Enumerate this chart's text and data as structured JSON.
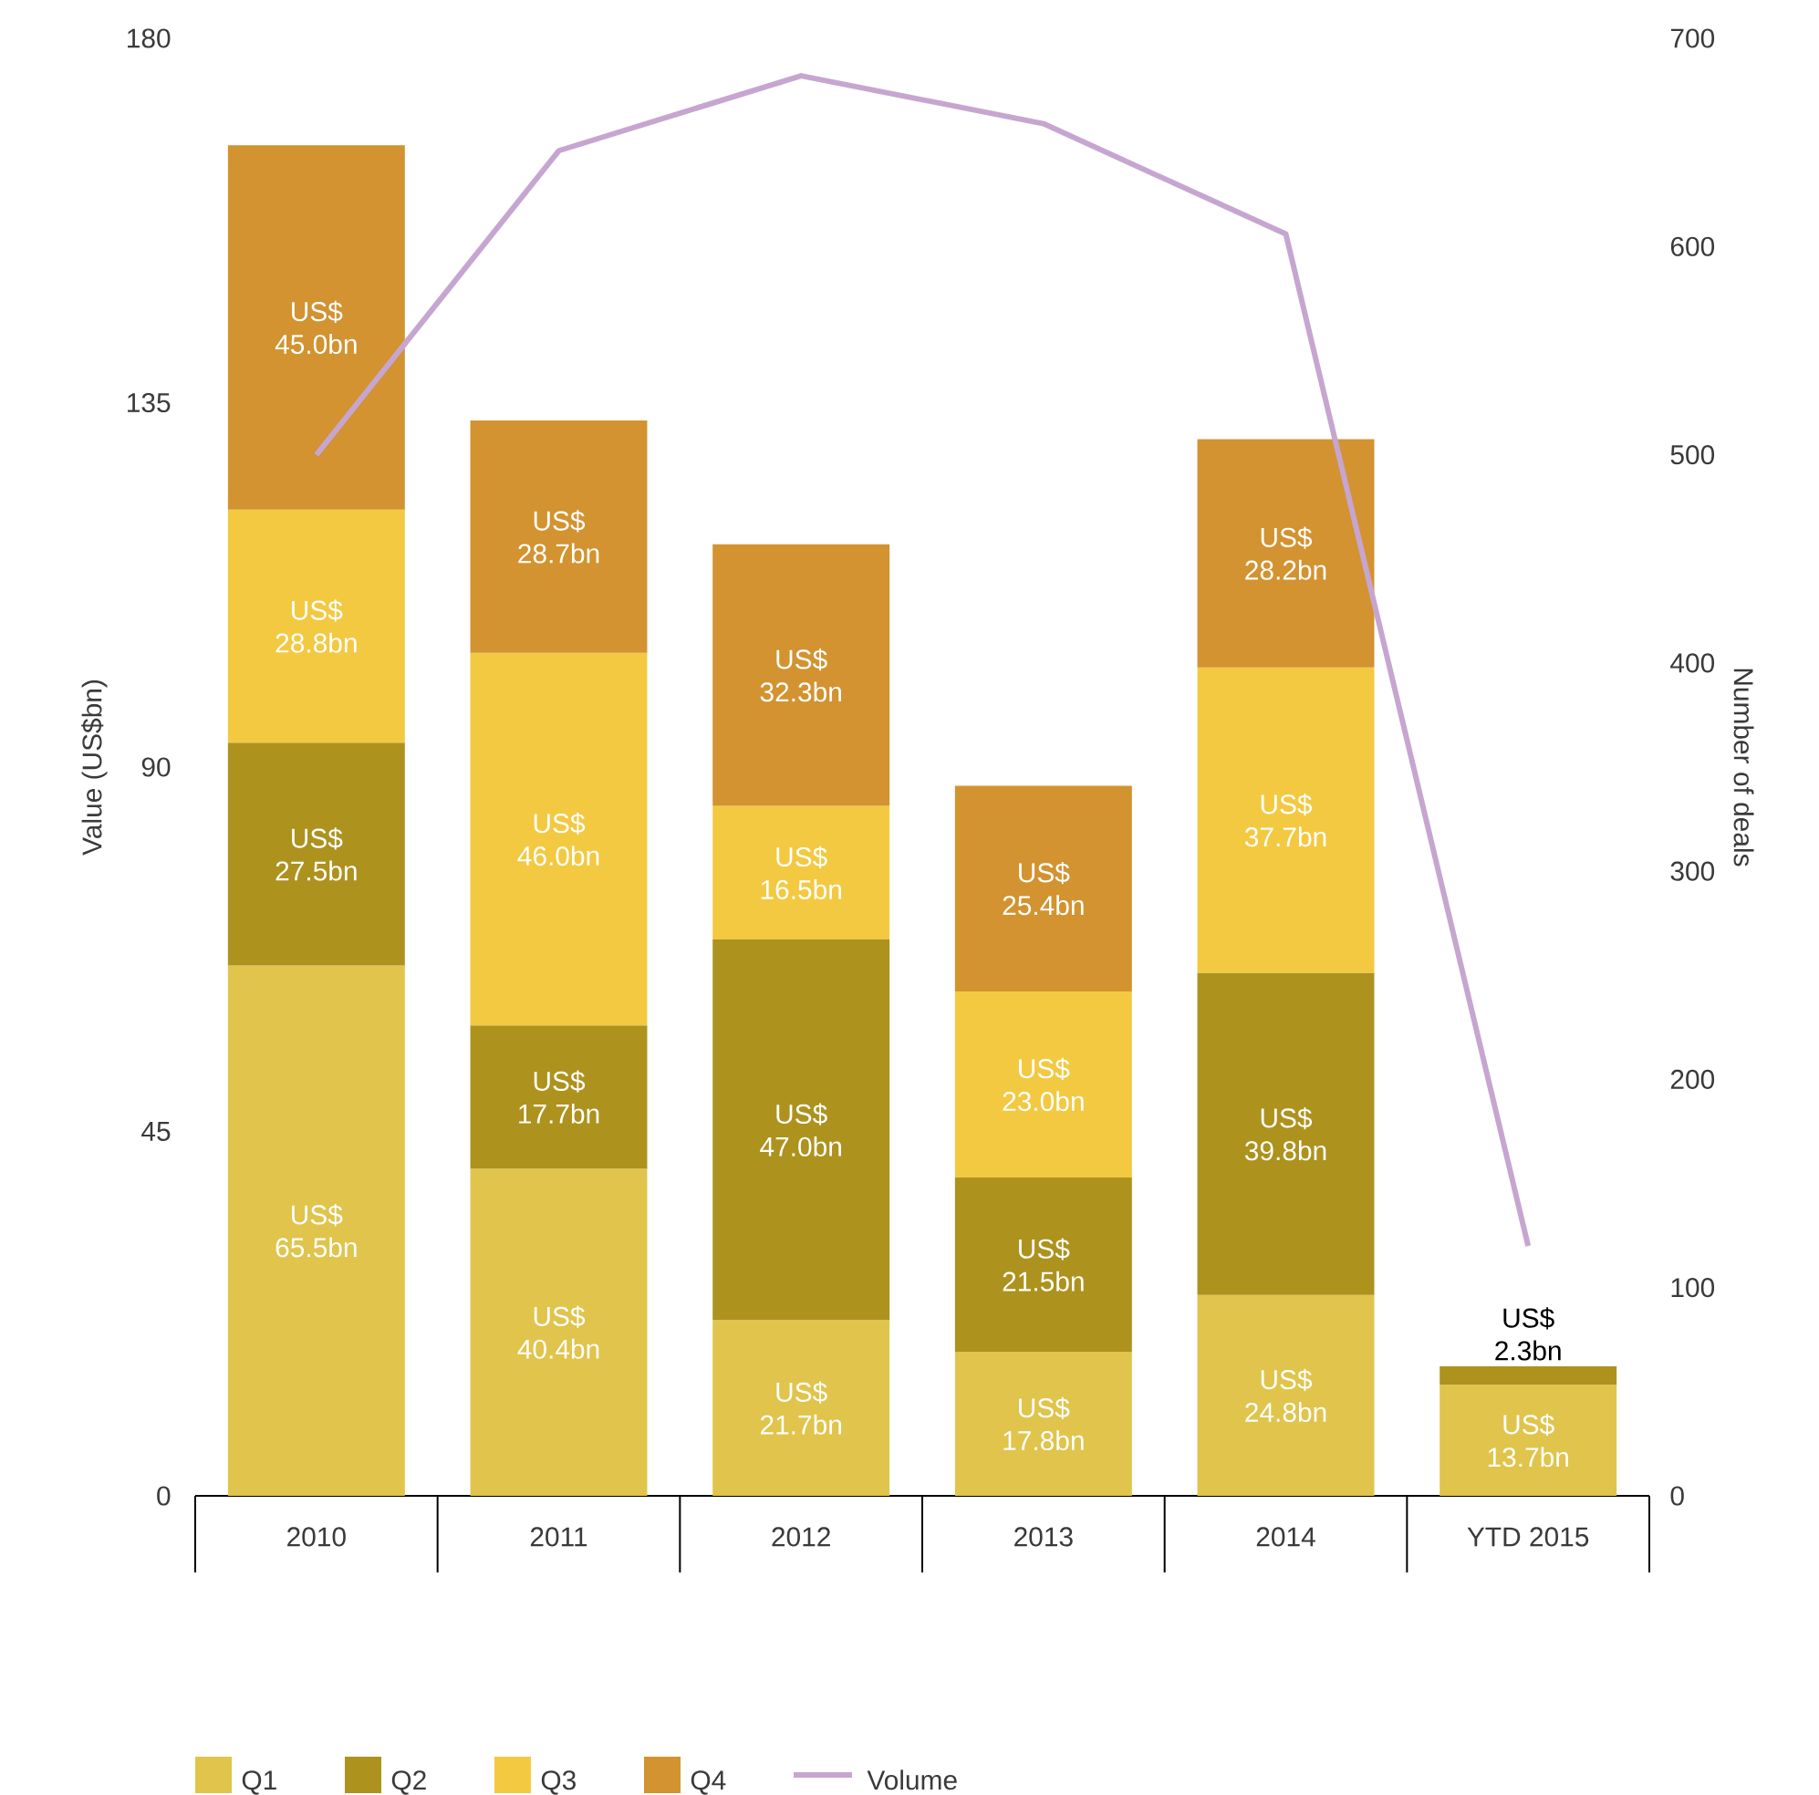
{
  "chart_data": {
    "type": "bar",
    "stacked": true,
    "categories": [
      "2010",
      "2011",
      "2012",
      "2013",
      "2014",
      "YTD 2015"
    ],
    "ylabel": "Value (US$bn)",
    "y2label": "Number of deals",
    "ylim": [
      0,
      180
    ],
    "yticks": [
      0,
      45,
      90,
      135,
      180
    ],
    "y2lim": [
      0,
      700
    ],
    "y2ticks": [
      0,
      100,
      200,
      300,
      400,
      500,
      600,
      700
    ],
    "legend": "bottom",
    "grid": false,
    "series": [
      {
        "name": "Q1",
        "color": "#e0c44c",
        "values": [
          65.5,
          40.4,
          21.7,
          17.8,
          24.8,
          13.7
        ],
        "value_labels": [
          "US$ 65.5bn",
          "US$ 40.4bn",
          "US$ 21.7bn",
          "US$ 17.8bn",
          "US$ 24.8bn",
          "US$ 13.7bn"
        ]
      },
      {
        "name": "Q2",
        "color": "#ad921e",
        "values": [
          27.5,
          17.7,
          47.0,
          21.5,
          39.8,
          2.3
        ],
        "value_labels": [
          "US$ 27.5bn",
          "US$ 17.7bn",
          "US$ 47.0bn",
          "US$ 21.5bn",
          "US$ 39.8bn",
          "US$ 2.3bn"
        ]
      },
      {
        "name": "Q3",
        "color": "#f3c942",
        "values": [
          28.8,
          46.0,
          16.5,
          23.0,
          37.7,
          null
        ],
        "value_labels": [
          "US$ 28.8bn",
          "US$ 46.0bn",
          "US$ 16.5bn",
          "US$ 23.0bn",
          "US$ 37.7bn",
          null
        ]
      },
      {
        "name": "Q4",
        "color": "#d29330",
        "values": [
          45.0,
          28.7,
          32.3,
          25.4,
          28.2,
          null
        ],
        "value_labels": [
          "US$ 45.0bn",
          "US$ 28.7bn",
          "US$ 32.3bn",
          "US$ 25.4bn",
          "US$ 28.2bn",
          null
        ]
      },
      {
        "name": "Volume",
        "type": "line",
        "axis": "y2",
        "color": "#c6a6d0",
        "values": [
          500,
          646,
          682,
          659,
          606,
          120
        ]
      }
    ]
  }
}
